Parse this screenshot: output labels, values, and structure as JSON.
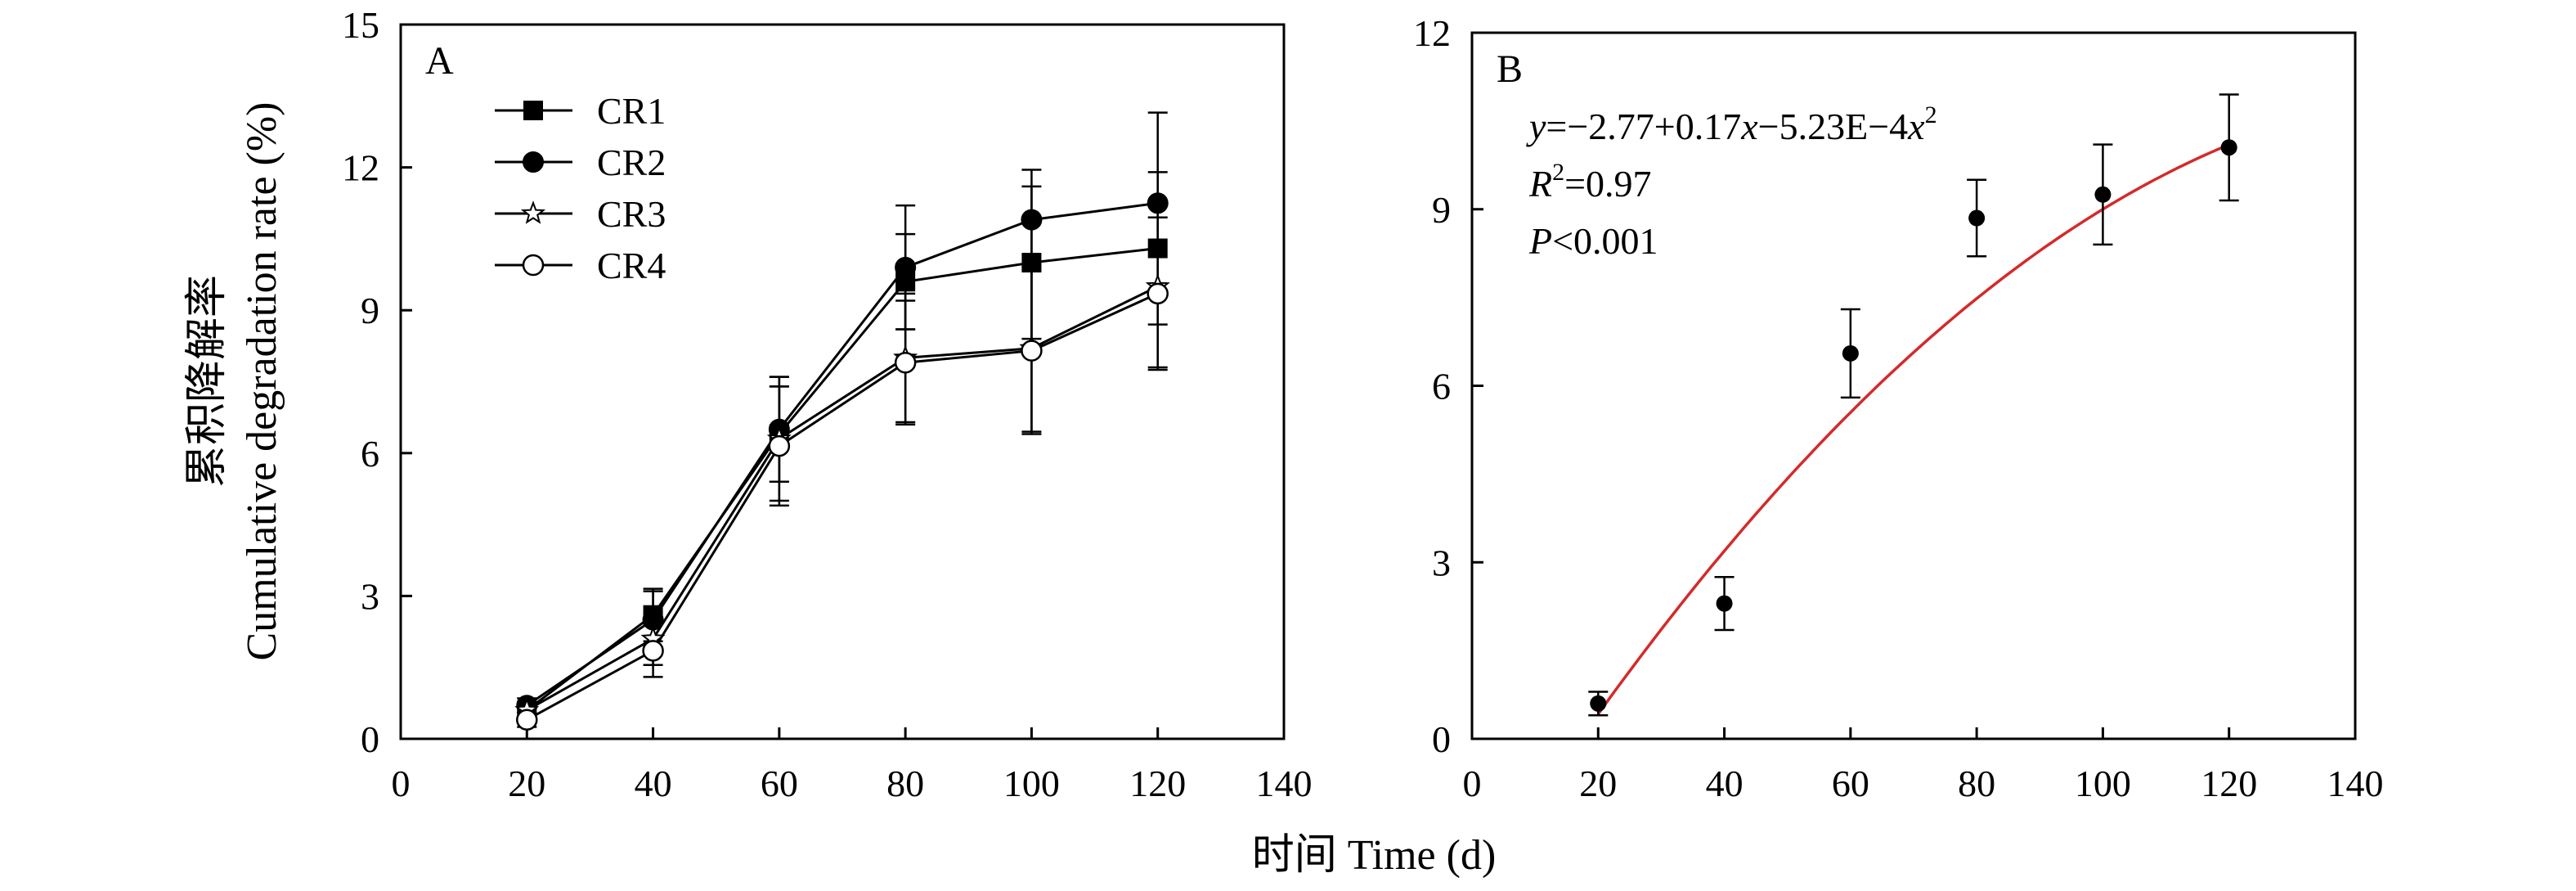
{
  "figure": {
    "shared_xlabel": "时间 Time (d)",
    "ylabel_cn": "累积降解率",
    "ylabel_en": "Cumulative degradation rate (%)"
  },
  "chart_data": [
    {
      "panel": "A",
      "type": "line",
      "xlim": [
        0,
        140
      ],
      "ylim": [
        0,
        15
      ],
      "xticks": [
        "0",
        "20",
        "40",
        "60",
        "80",
        "100",
        "120",
        "140"
      ],
      "yticks": [
        "0",
        "3",
        "6",
        "9",
        "12",
        "15"
      ],
      "grid": false,
      "legend_position": "top-left",
      "x": [
        20,
        40,
        60,
        80,
        100,
        120
      ],
      "series": [
        {
          "name": "CR1",
          "marker": "square",
          "values": [
            0.6,
            2.6,
            6.4,
            9.6,
            10.0,
            10.3
          ],
          "errors": [
            0.15,
            0.55,
            1.0,
            1.0,
            1.6,
            1.6
          ]
        },
        {
          "name": "CR2",
          "marker": "filled-circle",
          "values": [
            0.7,
            2.5,
            6.5,
            9.9,
            10.9,
            11.25
          ],
          "errors": [
            0.15,
            0.6,
            1.1,
            1.3,
            1.05,
            1.9
          ]
        },
        {
          "name": "CR3",
          "marker": "star",
          "values": [
            0.6,
            2.1,
            6.3,
            8.0,
            8.2,
            9.5
          ],
          "errors": [
            0.15,
            0.55,
            1.3,
            1.35,
            1.75,
            1.7
          ]
        },
        {
          "name": "CR4",
          "marker": "open-circle",
          "values": [
            0.4,
            1.85,
            6.15,
            7.9,
            8.15,
            9.35
          ],
          "errors": [
            0.15,
            0.55,
            1.25,
            1.3,
            1.75,
            1.6
          ]
        }
      ]
    },
    {
      "panel": "B",
      "type": "scatter",
      "xlim": [
        0,
        140
      ],
      "ylim": [
        0,
        12
      ],
      "xticks": [
        "0",
        "20",
        "40",
        "60",
        "80",
        "100",
        "120",
        "140"
      ],
      "yticks": [
        "0",
        "3",
        "6",
        "9",
        "12"
      ],
      "grid": false,
      "x": [
        20,
        40,
        60,
        80,
        100,
        120
      ],
      "values": [
        0.6,
        2.3,
        6.55,
        8.85,
        9.25,
        10.05
      ],
      "errors": [
        0.2,
        0.45,
        0.75,
        0.65,
        0.85,
        0.9
      ],
      "fit": {
        "intercept": -2.77,
        "b1": 0.17,
        "b2": -0.000523,
        "x_range": [
          20,
          120
        ],
        "color": "#d42a2a"
      },
      "equation": {
        "line1": [
          "y",
          "=−2.77+0.17",
          "x",
          "−5.23E−4",
          "x",
          "2"
        ],
        "line2": [
          "R",
          "2",
          "=0.97"
        ],
        "line3": [
          "P",
          "<0.001"
        ]
      }
    }
  ]
}
